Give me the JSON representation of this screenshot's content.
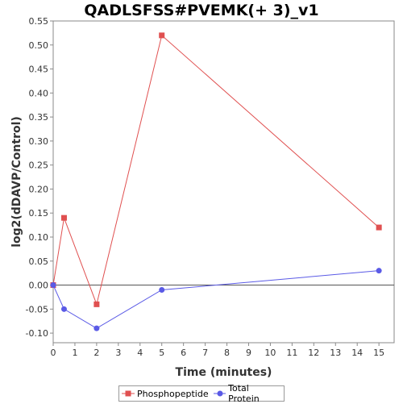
{
  "chart_data": {
    "type": "line",
    "title": "QADLSFSS#PVEMK(+ 3)_v1",
    "xlabel": "Time (minutes)",
    "ylabel": "log2(dDAVP/Control)",
    "xlim": [
      0,
      15.7
    ],
    "ylim": [
      -0.12,
      0.55
    ],
    "xticks": [
      0,
      1,
      2,
      3,
      4,
      5,
      6,
      7,
      8,
      9,
      10,
      11,
      12,
      13,
      14,
      15
    ],
    "yticks": [
      -0.1,
      -0.05,
      0.0,
      0.05,
      0.1,
      0.15,
      0.2,
      0.25,
      0.3,
      0.35,
      0.4,
      0.45,
      0.5,
      0.55
    ],
    "zero_line": true,
    "legend_position": "bottom",
    "series": [
      {
        "name": "Phosphopeptide",
        "color": "#e05050",
        "marker": "square",
        "x": [
          0,
          0.5,
          2,
          5,
          15
        ],
        "y": [
          0.0,
          0.14,
          -0.04,
          0.52,
          0.12
        ]
      },
      {
        "name": "Total Protein",
        "color": "#5a5ae6",
        "marker": "circle",
        "x": [
          0,
          0.5,
          2,
          5,
          15
        ],
        "y": [
          0.0,
          -0.05,
          -0.09,
          -0.01,
          0.03
        ]
      }
    ]
  }
}
